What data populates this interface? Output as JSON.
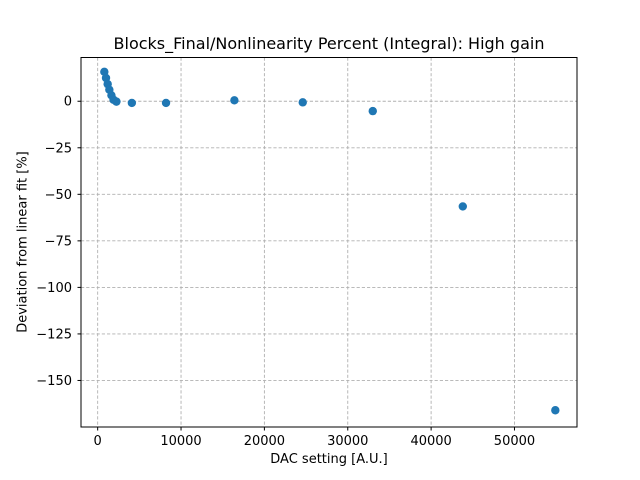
{
  "figure": {
    "background": "#ffffff",
    "spine_color": "#000000",
    "text_color": "#000000"
  },
  "chart_data": {
    "type": "scatter",
    "title": "Blocks_Final/Nonlinearity Percent (Integral): High gain",
    "xlabel": "DAC setting [A.U.]",
    "ylabel": "Deviation from linear fit [%]",
    "xlim": [
      -2000,
      57500
    ],
    "ylim": [
      -175,
      23.5
    ],
    "xticks": [
      0,
      10000,
      20000,
      30000,
      40000,
      50000
    ],
    "xtick_labels": [
      "0",
      "10000",
      "20000",
      "30000",
      "40000",
      "50000"
    ],
    "yticks": [
      0,
      -25,
      -50,
      -75,
      -100,
      -125,
      -150
    ],
    "ytick_labels": [
      "0",
      "−25",
      "−50",
      "−75",
      "−100",
      "−125",
      "−150"
    ],
    "grid": true,
    "grid_style": "dashed",
    "grid_color": "#b0b0b0",
    "legend": false,
    "marker": {
      "shape": "circle",
      "color": "#1f77b4",
      "radius_px": 4.2
    },
    "points": [
      {
        "x": 800,
        "y": 15.8
      },
      {
        "x": 1000,
        "y": 12.5
      },
      {
        "x": 1200,
        "y": 9.2
      },
      {
        "x": 1400,
        "y": 6.2
      },
      {
        "x": 1650,
        "y": 3.2
      },
      {
        "x": 1900,
        "y": 0.8
      },
      {
        "x": 2250,
        "y": -0.2
      },
      {
        "x": 4100,
        "y": -0.9
      },
      {
        "x": 8200,
        "y": -0.9
      },
      {
        "x": 16400,
        "y": 0.5
      },
      {
        "x": 24600,
        "y": -0.6
      },
      {
        "x": 33000,
        "y": -5.3
      },
      {
        "x": 43800,
        "y": -56.5
      },
      {
        "x": 54900,
        "y": -166.0
      }
    ]
  }
}
